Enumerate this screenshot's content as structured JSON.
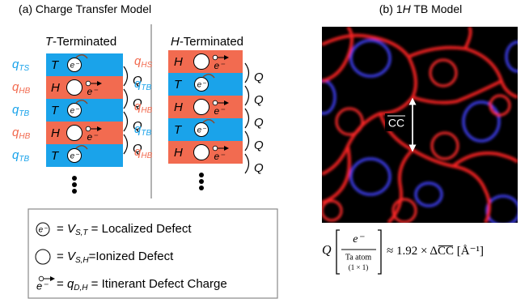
{
  "panel_a": {
    "title": "(a) Charge Transfer Model",
    "colors": {
      "T": "#1aa3ea",
      "H": "#f26b50"
    },
    "columns": [
      {
        "heading_letter": "T",
        "heading_rest": "-Terminated",
        "rows": [
          {
            "q": "q",
            "sub": "TS",
            "layer": "T",
            "e": "e⁻"
          },
          {
            "q": "q",
            "sub": "HB",
            "layer": "H",
            "e": "e⁻"
          },
          {
            "q": "q",
            "sub": "TB",
            "layer": "T",
            "e": "e⁻"
          },
          {
            "q": "q",
            "sub": "HB",
            "layer": "H",
            "e": "e⁻"
          },
          {
            "q": "q",
            "sub": "TB",
            "layer": "T",
            "e": "e⁻"
          }
        ],
        "transfers": [
          "Q",
          "Q",
          "Q",
          "Q"
        ]
      },
      {
        "heading_letter": "H",
        "heading_rest": "-Terminated",
        "rows": [
          {
            "q": "q",
            "sub": "HS",
            "layer": "H",
            "e": "e⁻"
          },
          {
            "q": "q",
            "sub": "TB",
            "layer": "T",
            "e": "e⁻"
          },
          {
            "q": "q",
            "sub": "HB",
            "layer": "H",
            "e": "e⁻"
          },
          {
            "q": "q",
            "sub": "TB",
            "layer": "T",
            "e": "e⁻"
          },
          {
            "q": "q",
            "sub": "HB",
            "layer": "H",
            "e": "e⁻"
          }
        ],
        "transfers": [
          "Q",
          "Q",
          "Q",
          "Q",
          "Q"
        ]
      }
    ],
    "legend": [
      {
        "icon_text": "e⁻",
        "pre": "= ",
        "sym": "V",
        "sub": "S,T",
        "post": " = Localized Defect"
      },
      {
        "pre": "= ",
        "sym": "V",
        "sub": "S,H",
        "post": "=Ionized Defect"
      },
      {
        "icon_text": "e⁻",
        "pre": "= ",
        "sym": "q",
        "sub": "D,H",
        "post": " = Itinerant Defect Charge"
      }
    ]
  },
  "panel_b": {
    "title_pre": "(b) 1",
    "title_italic": "H",
    "title_post": " TB Model",
    "image_label": "CC",
    "formula": {
      "lhs": "Q",
      "numerator": "e⁻",
      "denominator": "Ta atom",
      "cell": "(1 × 1)",
      "approx": "≈ 1.92 × Δ",
      "overlined": "CC",
      "unit": " [Å⁻¹]"
    }
  }
}
